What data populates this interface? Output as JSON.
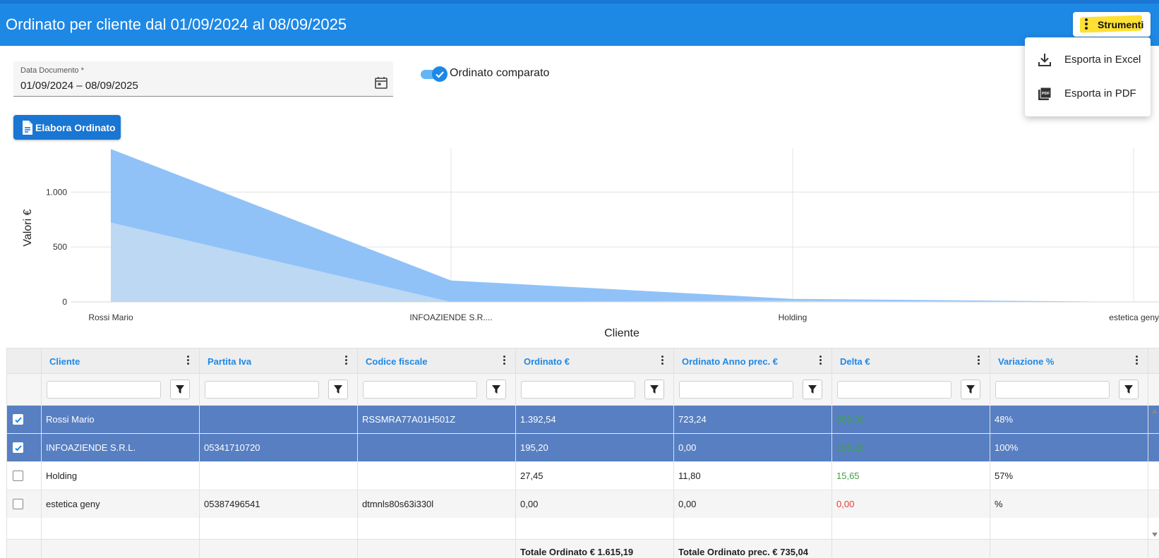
{
  "header": {
    "title": "Ordinato per cliente dal 01/09/2024 al 08/09/2025",
    "tools_label": "Strumenti"
  },
  "menu": {
    "items": [
      {
        "label": "Esporta in Excel",
        "icon": "download-icon"
      },
      {
        "label": "Esporta in PDF",
        "icon": "pdf-icon"
      }
    ]
  },
  "filters": {
    "date_label": "Data Documento *",
    "date_value": "01/09/2024 – 08/09/2025",
    "toggle_label": "Ordinato comparato",
    "toggle_on": true,
    "elabora_label": "Elabora Ordinato"
  },
  "chart_data": {
    "type": "area",
    "categories": [
      "Rossi Mario",
      "INFOAZIENDE S.R....",
      "Holding",
      "estetica geny"
    ],
    "series": [
      {
        "values": [
          1392.54,
          195.2,
          27.45,
          0.0
        ],
        "color": "#90c2f8"
      },
      {
        "values": [
          723.24,
          0.0,
          11.8,
          0.0
        ],
        "color": "#bcd8f3"
      }
    ],
    "xlabel": "Cliente",
    "ylabel": "Valori €",
    "ylim": [
      0,
      1400
    ],
    "yticks": [
      0,
      500,
      1000
    ],
    "ytick_labels": [
      "0",
      "500",
      "1.000"
    ],
    "grid": true
  },
  "table": {
    "columns": [
      "Cliente",
      "Partita Iva",
      "Codice fiscale",
      "Ordinato €",
      "Ordinato Anno prec. €",
      "Delta €",
      "Variazione %"
    ],
    "rows": [
      {
        "selected": true,
        "cells": [
          "Rossi Mario",
          "",
          "RSSMRA77A01H501Z",
          "1.392,54",
          "723,24",
          "669,30",
          "48%"
        ],
        "delta_color": "#43a047"
      },
      {
        "selected": true,
        "cells": [
          "INFOAZIENDE S.R.L.",
          "05341710720",
          "",
          "195,20",
          "0,00",
          "195,20",
          "100%"
        ],
        "delta_color": "#43a047"
      },
      {
        "selected": false,
        "cells": [
          "Holding",
          "",
          "",
          "27,45",
          "11,80",
          "15,65",
          "57%"
        ],
        "delta_color": "#43a047"
      },
      {
        "selected": false,
        "cells": [
          "estetica geny",
          "05387496541",
          "dtmnls80s63i330l",
          "0,00",
          "0,00",
          "0,00",
          "%"
        ],
        "delta_color": "#e53935"
      }
    ],
    "totals": {
      "ordinato": "Totale Ordinato € 1.615,19",
      "ordinato_prec": "Totale Ordinato prec. € 735,04"
    }
  },
  "colors": {
    "header": "#1e88e5",
    "selected_row": "#577fc2",
    "highlight": "#ffe033"
  }
}
